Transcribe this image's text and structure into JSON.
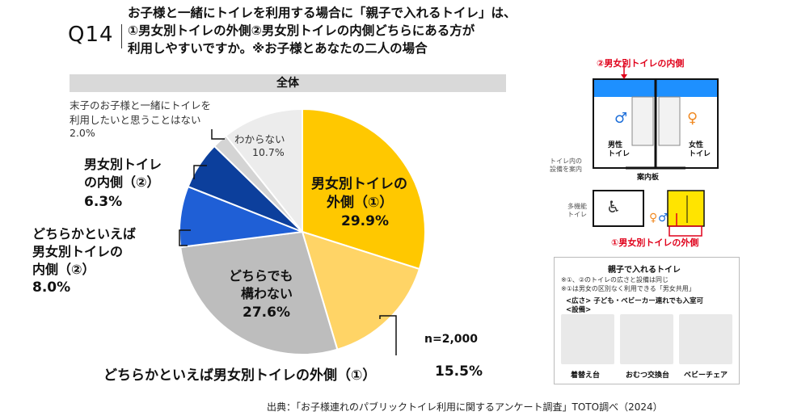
{
  "question": {
    "number": "Q14",
    "lines": [
      "お子様と一緒にトイレを利用する場合に「親子で入れるトイレ」は、",
      "①男女別トイレの外側②男女別トイレの内側どちらにある方が",
      "利用しやすいですか。※お子様とあなたの二人の場合"
    ]
  },
  "group_label": "全体",
  "n_label": "n=2,000",
  "source": "出典：「お子様連れのパブリックトイレ利用に関するアンケート調査」TOTO調べ（2024）",
  "chart_data": {
    "type": "pie",
    "start": "12 o'clock",
    "direction": "clockwise",
    "slices": [
      {
        "label_lines": [
          "男女別トイレの",
          "外側（①）"
        ],
        "value": 29.9,
        "value_text": "29.9%",
        "color": "#ffc800"
      },
      {
        "label_lines": [
          "どちらかといえば男女別トイレの外側（①）"
        ],
        "value": 15.5,
        "value_text": "15.5%",
        "color": "#ffd466"
      },
      {
        "label_lines": [
          "どちらでも",
          "構わない"
        ],
        "value": 27.6,
        "value_text": "27.6%",
        "color": "#bdbdbd"
      },
      {
        "label_lines": [
          "どちらかといえば",
          "男女別トイレの",
          "内側（②）"
        ],
        "value": 8.0,
        "value_text": "8.0%",
        "color": "#1f5fd6"
      },
      {
        "label_lines": [
          "男女別トイレ",
          "の内側（②）"
        ],
        "value": 6.3,
        "value_text": "6.3%",
        "color": "#0c3f9c"
      },
      {
        "label_lines": [
          "末子のお子様と一緒にトイレを",
          "利用したいと思うことはない"
        ],
        "value": 2.0,
        "value_text": "2.0%",
        "color": "#d4d4d4"
      },
      {
        "label_lines": [
          "わからない"
        ],
        "value": 10.7,
        "value_text": "10.7%",
        "color": "#ececec"
      }
    ]
  },
  "floor_plan": {
    "inner_label": "②男女別トイレの内側",
    "outer_label": "①男女別トイレの外側",
    "male_label": [
      "男性",
      "トイレ"
    ],
    "female_label": [
      "女性",
      "トイレ"
    ],
    "guide_label": "案内板",
    "guide_note": [
      "トイレ内の",
      "設備を案内"
    ],
    "multi_label": [
      "多機能",
      "トイレ"
    ],
    "inner_color": "#1e90ff",
    "outer_color": "#ffe400",
    "accent_red": "#e0001a"
  },
  "info_panel": {
    "title": "親子で入れるトイレ",
    "notes": [
      "※①、②のトイレの広さと設備は同じ",
      "※①は男女の区別なく利用できる「男女共用」"
    ],
    "size_line": "<広さ> 子ども・ベビーカー連れでも入室可",
    "equip_line": "<設備>",
    "photos": [
      "着替え台",
      "おむつ交換台",
      "ベビーチェア"
    ]
  }
}
